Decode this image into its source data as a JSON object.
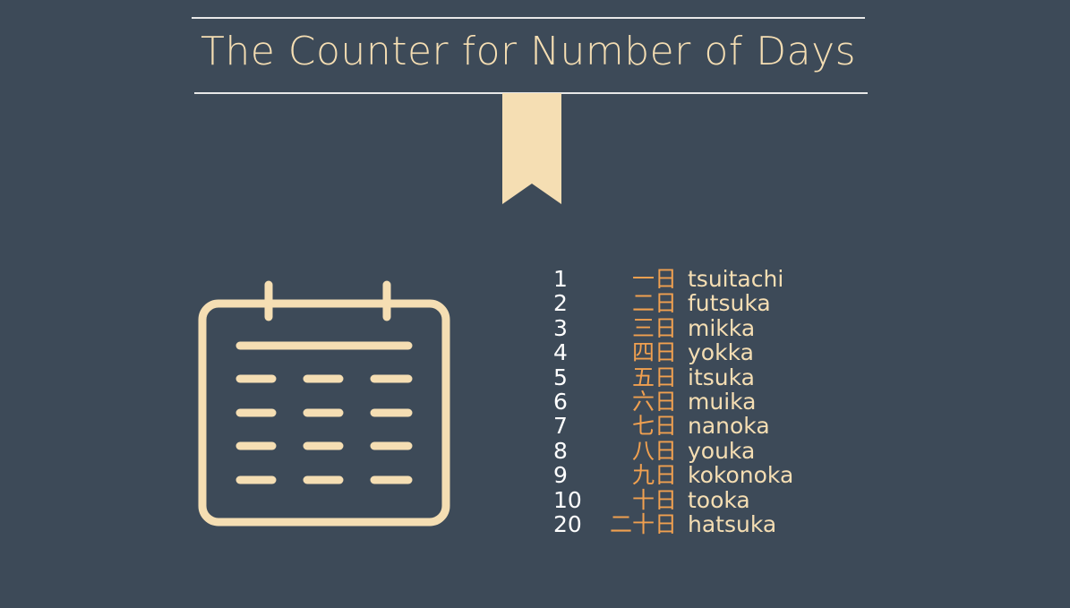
{
  "title": "The Counter for Number of Days",
  "colors": {
    "background": "#3d4a58",
    "accent": "#f5deb3",
    "kanji": "#f0a050",
    "number": "#ffffff"
  },
  "icons": {
    "ribbon": "bookmark-ribbon-icon",
    "calendar": "calendar-icon"
  },
  "rows": [
    {
      "number": "1",
      "kanji": "一日",
      "reading": "tsuitachi"
    },
    {
      "number": "2",
      "kanji": "二日",
      "reading": "futsuka"
    },
    {
      "number": "3",
      "kanji": "三日",
      "reading": "mikka"
    },
    {
      "number": "4",
      "kanji": "四日",
      "reading": "yokka"
    },
    {
      "number": "5",
      "kanji": "五日",
      "reading": "itsuka"
    },
    {
      "number": "6",
      "kanji": "六日",
      "reading": "muika"
    },
    {
      "number": "7",
      "kanji": "七日",
      "reading": "nanoka"
    },
    {
      "number": "8",
      "kanji": "八日",
      "reading": "youka"
    },
    {
      "number": "9",
      "kanji": "九日",
      "reading": "kokonoka"
    },
    {
      "number": "10",
      "kanji": "十日",
      "reading": "tooka"
    },
    {
      "number": "20",
      "kanji": "二十日",
      "reading": "hatsuka"
    }
  ]
}
